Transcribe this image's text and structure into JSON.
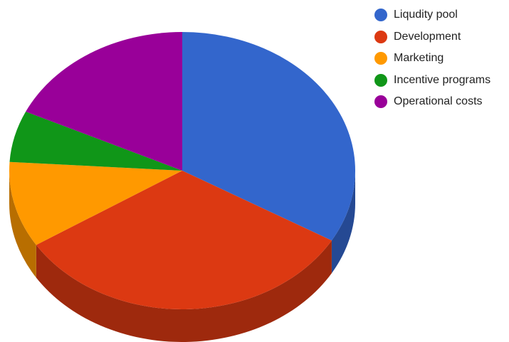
{
  "chart_data": {
    "type": "pie",
    "style": "3d",
    "title": "",
    "legend_position": "right",
    "slices": [
      {
        "label": "Liqudity pool",
        "value": 33.4,
        "color": "#3366cc"
      },
      {
        "label": "Development",
        "value": 32.6,
        "color": "#dc3912"
      },
      {
        "label": "Marketing",
        "value": 10,
        "color": "#ff9900"
      },
      {
        "label": "Incentive programs",
        "value": 6,
        "color": "#109618"
      },
      {
        "label": "Operational costs",
        "value": 18,
        "color": "#990099"
      }
    ]
  }
}
